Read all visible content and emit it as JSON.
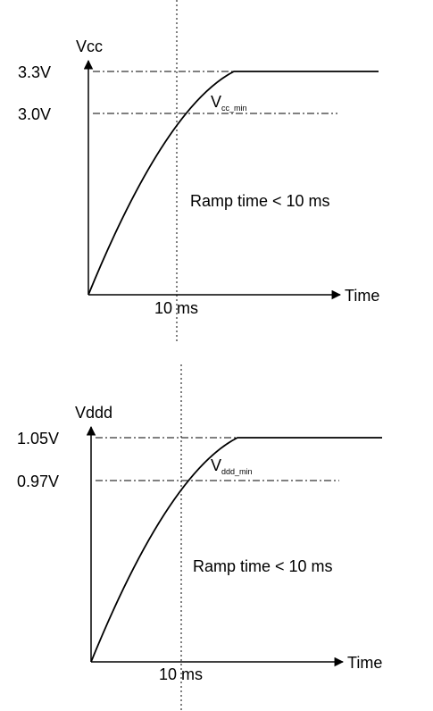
{
  "chart_data": [
    {
      "type": "line",
      "ylabel": "Vcc",
      "xlabel": "Time",
      "levels": [
        {
          "value_label": "3.3V"
        },
        {
          "value_label": "3.0V",
          "name": "V",
          "name_sub": "cc_min"
        }
      ],
      "x_marker_label": "10 ms",
      "annotation": "Ramp time < 10 ms"
    },
    {
      "type": "line",
      "ylabel": "Vddd",
      "xlabel": "Time",
      "levels": [
        {
          "value_label": "1.05V"
        },
        {
          "value_label": "0.97V",
          "name": "V",
          "name_sub": "ddd_min"
        }
      ],
      "x_marker_label": "10 ms",
      "annotation": "Ramp time < 10 ms"
    }
  ]
}
